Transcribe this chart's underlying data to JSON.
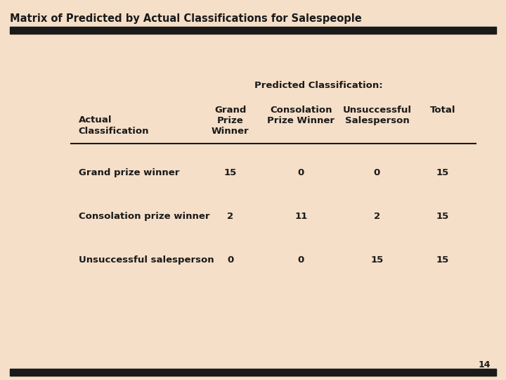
{
  "title": "Matrix of Predicted by Actual Classifications for Salespeople",
  "background_color": "#f5dfc8",
  "title_fontsize": 10.5,
  "predicted_label": "Predicted Classification:",
  "row_header_label1": "Actual",
  "row_header_label2": "Classification",
  "col_headers_line1": [
    "Grand",
    "Consolation",
    "Unsuccessful",
    "Total"
  ],
  "col_headers_line2": [
    "Prize",
    "Prize Winner",
    "Salesperson",
    ""
  ],
  "col_headers_line3": [
    "Winner",
    "",
    "",
    ""
  ],
  "row_labels": [
    "Grand prize winner",
    "Consolation prize winner",
    "Unsuccessful salesperson"
  ],
  "data": [
    [
      15,
      0,
      0,
      15
    ],
    [
      2,
      11,
      2,
      15
    ],
    [
      0,
      0,
      15,
      15
    ]
  ],
  "bar_color": "#1a1a1a",
  "text_color": "#1a1a1a",
  "page_number": "14",
  "col_header_fontsize": 9.5,
  "row_label_fontsize": 9.5,
  "data_fontsize": 9.5
}
